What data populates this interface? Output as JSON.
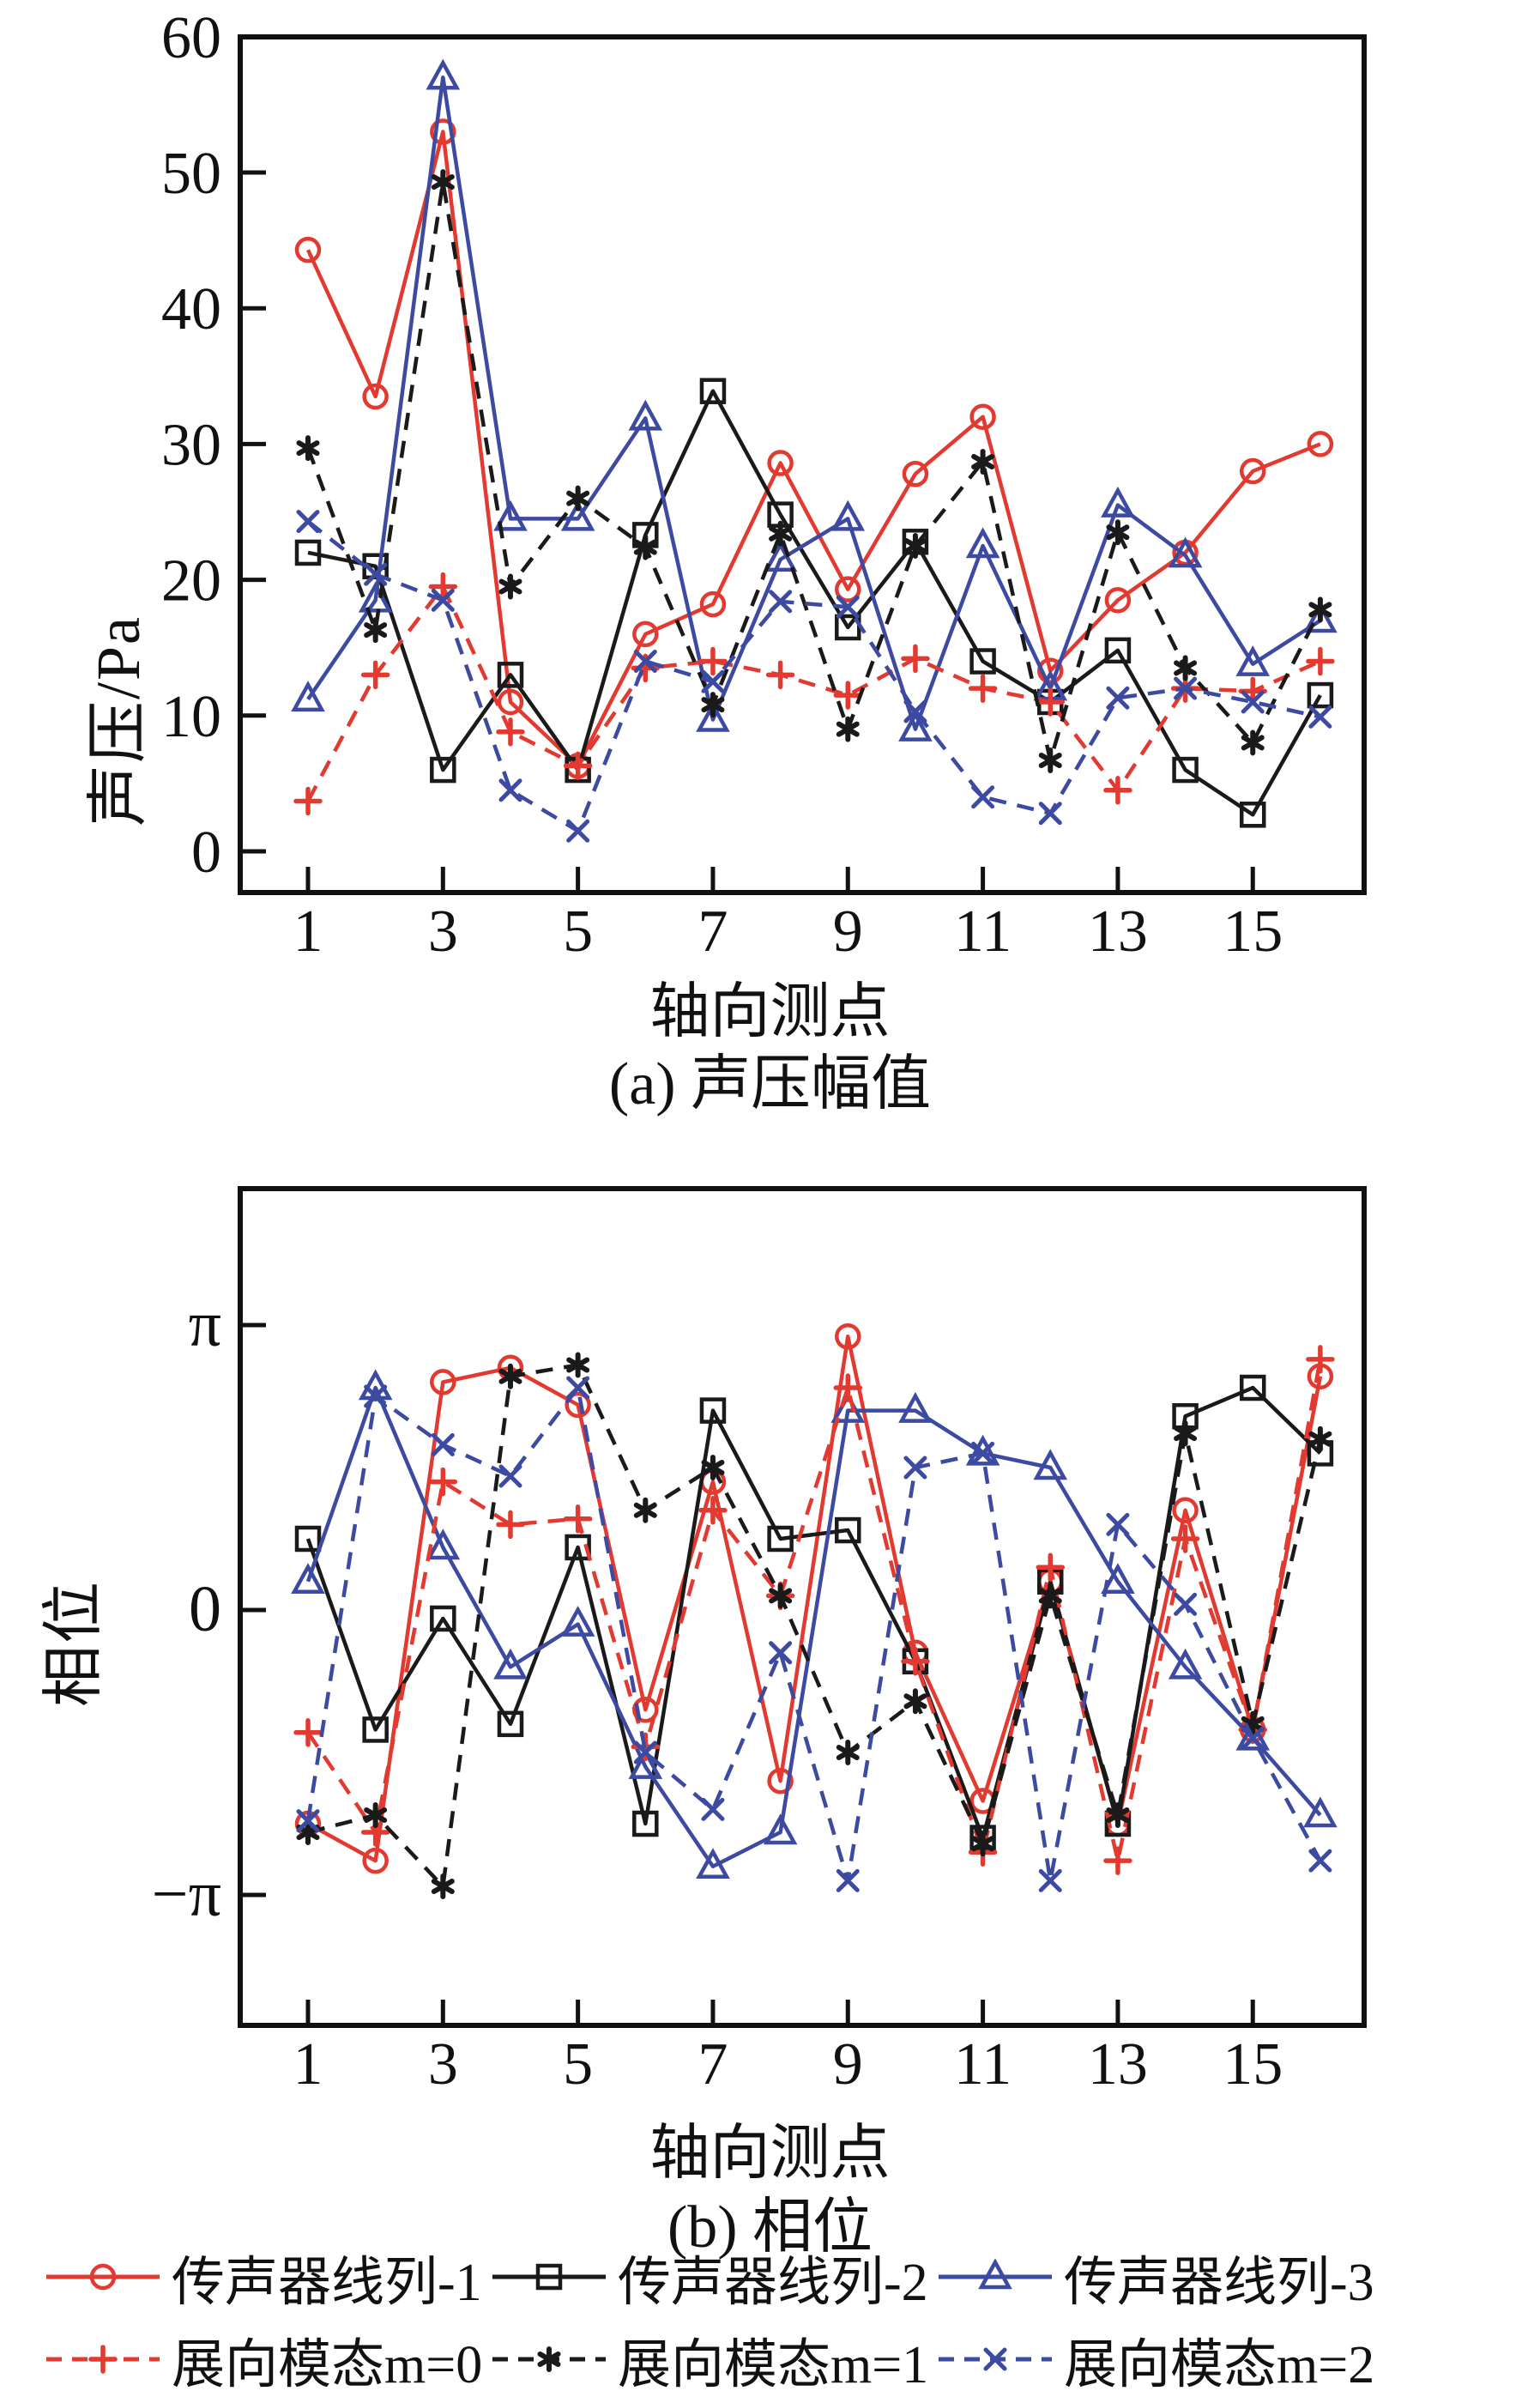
{
  "figure": {
    "ylabel_a": "声压/Pa",
    "ylabel_b": "相位",
    "xlabel_a": "轴向测点",
    "xlabel_b": "轴向测点",
    "caption_a": "(a) 声压幅值",
    "caption_b": "(b) 相位"
  },
  "colors": {
    "red": "#e23a30",
    "black": "#1a1a1a",
    "blue": "#3d4aa1",
    "text": "#111111"
  },
  "legend": {
    "items": [
      {
        "label": "传声器线列-1",
        "series": "mic1",
        "row": 0,
        "col": 0
      },
      {
        "label": "传声器线列-2",
        "series": "mic2",
        "row": 0,
        "col": 1
      },
      {
        "label": "传声器线列-3",
        "series": "mic3",
        "row": 0,
        "col": 2
      },
      {
        "label": "展向模态m=0",
        "series": "m0",
        "row": 1,
        "col": 0
      },
      {
        "label": "展向模态m=1",
        "series": "m1",
        "row": 1,
        "col": 1
      },
      {
        "label": "展向模态m=2",
        "series": "m2",
        "row": 1,
        "col": 2
      }
    ]
  },
  "chart_data": [
    {
      "id": "a",
      "type": "line",
      "title": "(a) 声压幅值",
      "xlabel": "轴向测点",
      "ylabel": "声压/Pa",
      "x": [
        1,
        2,
        3,
        4,
        5,
        6,
        7,
        8,
        9,
        10,
        11,
        12,
        13,
        14,
        15,
        16
      ],
      "xtick_labels": [
        1,
        3,
        5,
        7,
        9,
        11,
        13,
        15
      ],
      "yticks": [
        {
          "v": 0,
          "label": "0"
        },
        {
          "v": 10,
          "label": "10"
        },
        {
          "v": 20,
          "label": "20"
        },
        {
          "v": 30,
          "label": "30"
        },
        {
          "v": 40,
          "label": "40"
        },
        {
          "v": 50,
          "label": "50"
        },
        {
          "v": 60,
          "label": "60"
        }
      ],
      "ylim": [
        -3,
        60
      ],
      "grid": false,
      "series": [
        {
          "key": "mic1",
          "name": "传声器线列-1",
          "color": "red",
          "style": "solid",
          "marker": "circle",
          "values": [
            44.3,
            33.5,
            53.0,
            11.0,
            6.3,
            16.0,
            18.2,
            28.6,
            19.3,
            27.8,
            32.0,
            13.3,
            18.5,
            22.0,
            28.0,
            30.0
          ]
        },
        {
          "key": "mic2",
          "name": "传声器线列-2",
          "color": "black",
          "style": "solid",
          "marker": "square",
          "values": [
            22.0,
            21.0,
            6.0,
            13.0,
            6.0,
            23.3,
            33.9,
            24.8,
            16.5,
            22.8,
            14.0,
            11.0,
            14.8,
            6.0,
            2.7,
            11.5
          ]
        },
        {
          "key": "mic3",
          "name": "传声器线列-3",
          "color": "blue",
          "style": "solid",
          "marker": "triangle",
          "values": [
            11.2,
            18.5,
            57.0,
            24.5,
            24.5,
            31.9,
            9.7,
            21.5,
            24.5,
            9.0,
            22.5,
            12.0,
            25.5,
            21.8,
            13.8,
            17.0
          ]
        },
        {
          "key": "m0",
          "name": "展向模态m=0",
          "color": "red",
          "style": "dashed",
          "marker": "plus",
          "values": [
            3.7,
            13.0,
            19.5,
            8.8,
            6.3,
            13.5,
            14.0,
            13.0,
            11.5,
            14.2,
            12.0,
            11.0,
            4.5,
            12.0,
            11.8,
            14.0
          ]
        },
        {
          "key": "m1",
          "name": "展向模态m=1",
          "color": "black",
          "style": "dashed",
          "marker": "star",
          "values": [
            29.7,
            16.3,
            49.3,
            19.5,
            26.0,
            22.4,
            10.8,
            23.4,
            9.0,
            22.5,
            28.7,
            6.7,
            23.5,
            13.5,
            8.0,
            17.8
          ]
        },
        {
          "key": "m2",
          "name": "展向模态m=2",
          "color": "blue",
          "style": "dashed",
          "marker": "x",
          "values": [
            24.3,
            20.4,
            18.5,
            4.5,
            1.5,
            14.0,
            12.5,
            18.4,
            18.0,
            10.3,
            4.0,
            2.8,
            11.3,
            12.0,
            11.0,
            9.9
          ]
        }
      ]
    },
    {
      "id": "b",
      "type": "line",
      "title": "(b) 相位",
      "xlabel": "轴向测点",
      "ylabel": "相位",
      "y_unit": "pi_radians",
      "x": [
        1,
        2,
        3,
        4,
        5,
        6,
        7,
        8,
        9,
        10,
        11,
        12,
        13,
        14,
        15,
        16
      ],
      "xtick_labels": [
        1,
        3,
        5,
        7,
        9,
        11,
        13,
        15
      ],
      "yticks": [
        {
          "v": 1,
          "label": "π"
        },
        {
          "v": 0,
          "label": "0"
        },
        {
          "v": -1,
          "label": "−π"
        }
      ],
      "ylim": [
        -1.47,
        1.47
      ],
      "grid": false,
      "series": [
        {
          "key": "mic1",
          "name": "传声器线列-1",
          "color": "red",
          "style": "solid",
          "marker": "circle",
          "values": [
            -0.75,
            -0.88,
            0.8,
            0.85,
            0.72,
            -0.35,
            0.45,
            -0.6,
            0.96,
            -0.15,
            -0.67,
            0.1,
            -0.75,
            0.35,
            -0.42,
            0.82
          ]
        },
        {
          "key": "mic2",
          "name": "传声器线列-2",
          "color": "black",
          "style": "solid",
          "marker": "square",
          "values": [
            0.25,
            -0.42,
            -0.03,
            -0.4,
            0.22,
            -0.75,
            0.7,
            0.25,
            0.28,
            -0.18,
            -0.8,
            0.1,
            -0.75,
            0.68,
            0.78,
            0.55
          ]
        },
        {
          "key": "mic3",
          "name": "传声器线列-3",
          "color": "blue",
          "style": "solid",
          "marker": "triangle",
          "values": [
            0.1,
            0.78,
            0.22,
            -0.2,
            -0.05,
            -0.55,
            -0.9,
            -0.78,
            0.7,
            0.7,
            0.55,
            0.5,
            0.1,
            -0.2,
            -0.45,
            -0.72
          ]
        },
        {
          "key": "m0",
          "name": "展向模态m=0",
          "color": "red",
          "style": "dashed",
          "marker": "plus",
          "values": [
            -0.43,
            -0.78,
            0.45,
            0.3,
            0.32,
            -0.48,
            0.35,
            0.05,
            0.78,
            -0.18,
            -0.85,
            0.15,
            -0.88,
            0.25,
            -0.42,
            0.88
          ]
        },
        {
          "key": "m1",
          "name": "展向模态m=1",
          "color": "black",
          "style": "dashed",
          "marker": "star",
          "values": [
            -0.78,
            -0.72,
            -0.97,
            0.82,
            0.86,
            0.35,
            0.5,
            0.05,
            -0.5,
            -0.32,
            -0.82,
            0.05,
            -0.72,
            0.62,
            -0.4,
            0.6
          ]
        },
        {
          "key": "m2",
          "name": "展向模态m=2",
          "color": "blue",
          "style": "dashed",
          "marker": "x",
          "values": [
            -0.74,
            0.75,
            0.58,
            0.47,
            0.78,
            -0.5,
            -0.7,
            -0.15,
            -0.95,
            0.5,
            0.55,
            -0.95,
            0.3,
            0.02,
            -0.45,
            -0.88
          ]
        }
      ]
    }
  ]
}
